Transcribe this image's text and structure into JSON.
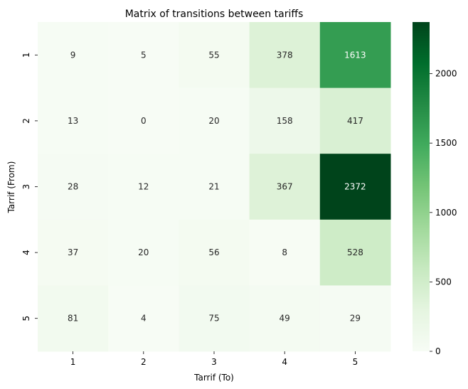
{
  "chart_data": {
    "type": "heatmap",
    "title": "Matrix of transitions between tariffs",
    "xlabel": "Tarrif (To)",
    "ylabel": "Tarrif (From)",
    "x_categories": [
      "1",
      "2",
      "3",
      "4",
      "5"
    ],
    "y_categories": [
      "1",
      "2",
      "3",
      "4",
      "5"
    ],
    "values": [
      [
        9,
        5,
        55,
        378,
        1613
      ],
      [
        13,
        0,
        20,
        158,
        417
      ],
      [
        28,
        12,
        21,
        367,
        2372
      ],
      [
        37,
        20,
        56,
        8,
        528
      ],
      [
        81,
        4,
        75,
        49,
        29
      ]
    ],
    "colormap": "Greens",
    "vmin": 0,
    "vmax": 2372,
    "colorbar_ticks": [
      0,
      500,
      1000,
      1500,
      2000
    ],
    "colorbar_tick_labels": [
      "0",
      "500",
      "1000",
      "1500",
      "2000"
    ],
    "annotation_colors": {
      "dark_text": "#262626",
      "light_text": "#ffffff"
    }
  }
}
